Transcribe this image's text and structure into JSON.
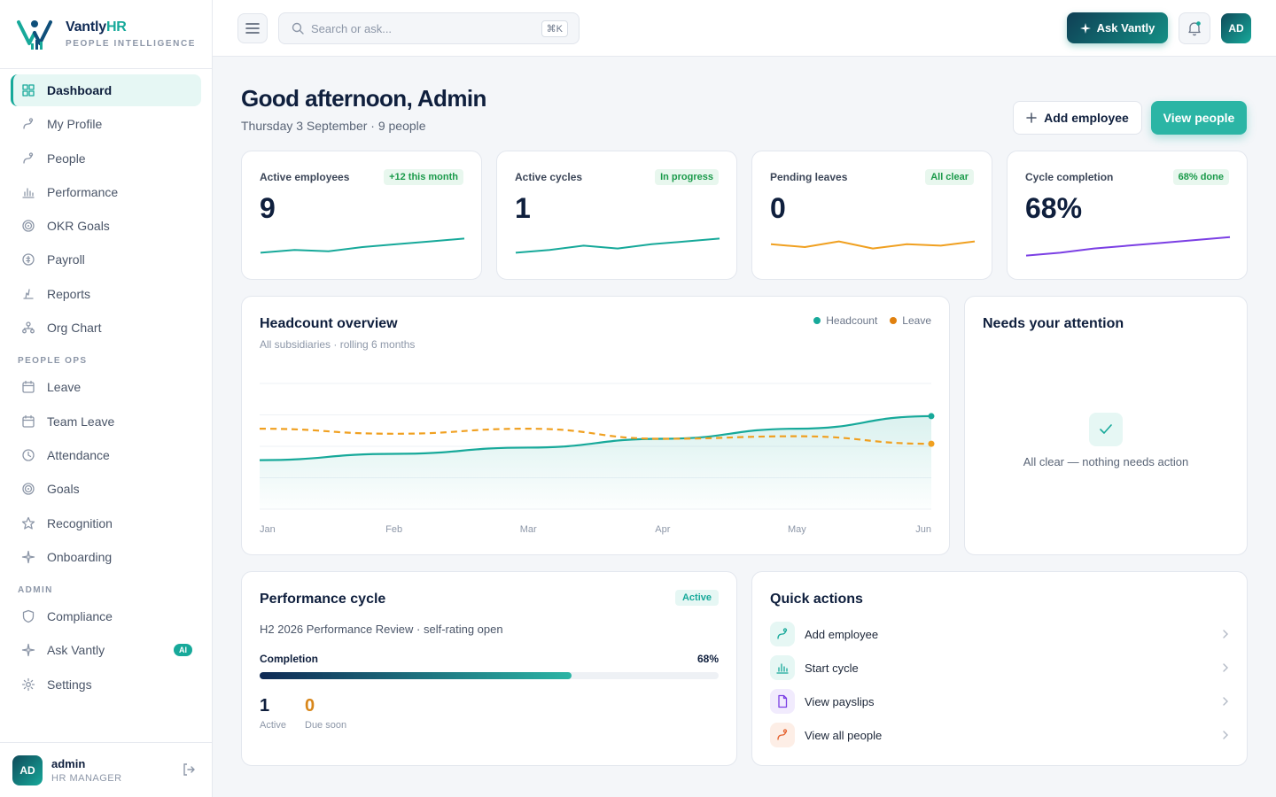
{
  "brand": {
    "name_main": "Vantly",
    "name_accent": "HR",
    "subtitle": "PEOPLE INTELLIGENCE"
  },
  "colors": {
    "accent": "#17a99a",
    "navy": "#0f1f3d",
    "leave": "#f0a020",
    "purple": "#7b3fe4"
  },
  "sidebar": {
    "main_items": [
      {
        "label": "Dashboard",
        "icon": "grid-icon",
        "active": true
      },
      {
        "label": "My Profile",
        "icon": "user-icon"
      },
      {
        "label": "People",
        "icon": "users-icon"
      },
      {
        "label": "Performance",
        "icon": "bar-chart-icon"
      },
      {
        "label": "OKR Goals",
        "icon": "target-icon"
      },
      {
        "label": "Payroll",
        "icon": "currency-icon"
      },
      {
        "label": "Reports",
        "icon": "report-icon"
      },
      {
        "label": "Org Chart",
        "icon": "org-chart-icon"
      }
    ],
    "section_people_ops": "PEOPLE OPS",
    "people_ops_items": [
      {
        "label": "Leave",
        "icon": "calendar-icon"
      },
      {
        "label": "Team Leave",
        "icon": "calendar-icon"
      },
      {
        "label": "Attendance",
        "icon": "clock-icon"
      },
      {
        "label": "Goals",
        "icon": "target-icon"
      },
      {
        "label": "Recognition",
        "icon": "star-icon"
      },
      {
        "label": "Onboarding",
        "icon": "sparkle-icon"
      }
    ],
    "section_admin": "ADMIN",
    "admin_items": [
      {
        "label": "Compliance",
        "icon": "shield-icon"
      },
      {
        "label": "Ask Vantly",
        "icon": "sparkle-icon",
        "badge": "AI"
      },
      {
        "label": "Settings",
        "icon": "gear-icon"
      }
    ],
    "user": {
      "initials": "AD",
      "name": "admin",
      "role": "HR MANAGER"
    }
  },
  "topbar": {
    "search_placeholder": "Search or ask...",
    "search_shortcut": "⌘K",
    "ask_button": "Ask Vantly",
    "avatar_initials": "AD"
  },
  "header": {
    "greeting": "Good afternoon, Admin",
    "subtitle": "Thursday 3 September · 9 people",
    "add_employee": "Add employee",
    "view_people": "View people"
  },
  "stats": [
    {
      "label": "Active employees",
      "value": "9",
      "badge": "+12 this month",
      "color": "#17a99a",
      "trend": [
        3,
        4,
        3.5,
        5,
        6,
        7,
        8
      ]
    },
    {
      "label": "Active cycles",
      "value": "1",
      "badge": "In progress",
      "color": "#17a99a",
      "trend": [
        3,
        4,
        5.5,
        4.5,
        6,
        7,
        8
      ]
    },
    {
      "label": "Pending leaves",
      "value": "0",
      "badge": "All clear",
      "color": "#f0a020",
      "trend": [
        6,
        5,
        7,
        4.5,
        6,
        5.5,
        7
      ]
    },
    {
      "label": "Cycle completion",
      "value": "68%",
      "badge": "68% done",
      "color": "#7b3fe4",
      "trend": [
        2,
        3,
        4.5,
        5.5,
        6.5,
        7.5,
        8.5
      ]
    }
  ],
  "headcount": {
    "title": "Headcount overview",
    "subtitle": "All subsidiaries · rolling 6 months",
    "legend_headcount": "Headcount",
    "legend_leave": "Leave"
  },
  "chart_data": {
    "type": "line",
    "categories": [
      "Jan",
      "Feb",
      "Mar",
      "Apr",
      "May",
      "Jun"
    ],
    "series": [
      {
        "name": "Headcount",
        "color": "#17a99a",
        "style": "solid-area",
        "values": [
          3.9,
          4.4,
          4.9,
          5.6,
          6.4,
          7.4
        ]
      },
      {
        "name": "Leave",
        "color": "#f0a020",
        "style": "dashed",
        "values": [
          6.4,
          6.0,
          6.4,
          5.6,
          5.8,
          5.2
        ]
      }
    ],
    "ylim": [
      0,
      10
    ],
    "grid": true,
    "legend": "top-right"
  },
  "attention": {
    "title": "Needs your attention",
    "empty_text": "All clear — nothing needs action"
  },
  "performance": {
    "title": "Performance cycle",
    "badge": "Active",
    "description": "H2 2026 Performance Review · self-rating open",
    "completion_label": "Completion",
    "completion_text": "68%",
    "completion_fraction": 0.68,
    "active_count": "1",
    "active_label": "Active",
    "due_count": "0",
    "due_label": "Due soon"
  },
  "quick_actions": {
    "title": "Quick actions",
    "items": [
      {
        "label": "Add employee",
        "icon": "user-icon",
        "bg": "#e6f7f4",
        "fg": "#17a99a"
      },
      {
        "label": "Start cycle",
        "icon": "bar-chart-icon",
        "bg": "#e6f7f4",
        "fg": "#17a99a"
      },
      {
        "label": "View payslips",
        "icon": "document-icon",
        "bg": "#f1ebfd",
        "fg": "#7b3fe4"
      },
      {
        "label": "View all people",
        "icon": "users-icon",
        "bg": "#fdeee6",
        "fg": "#e5612d"
      }
    ]
  }
}
